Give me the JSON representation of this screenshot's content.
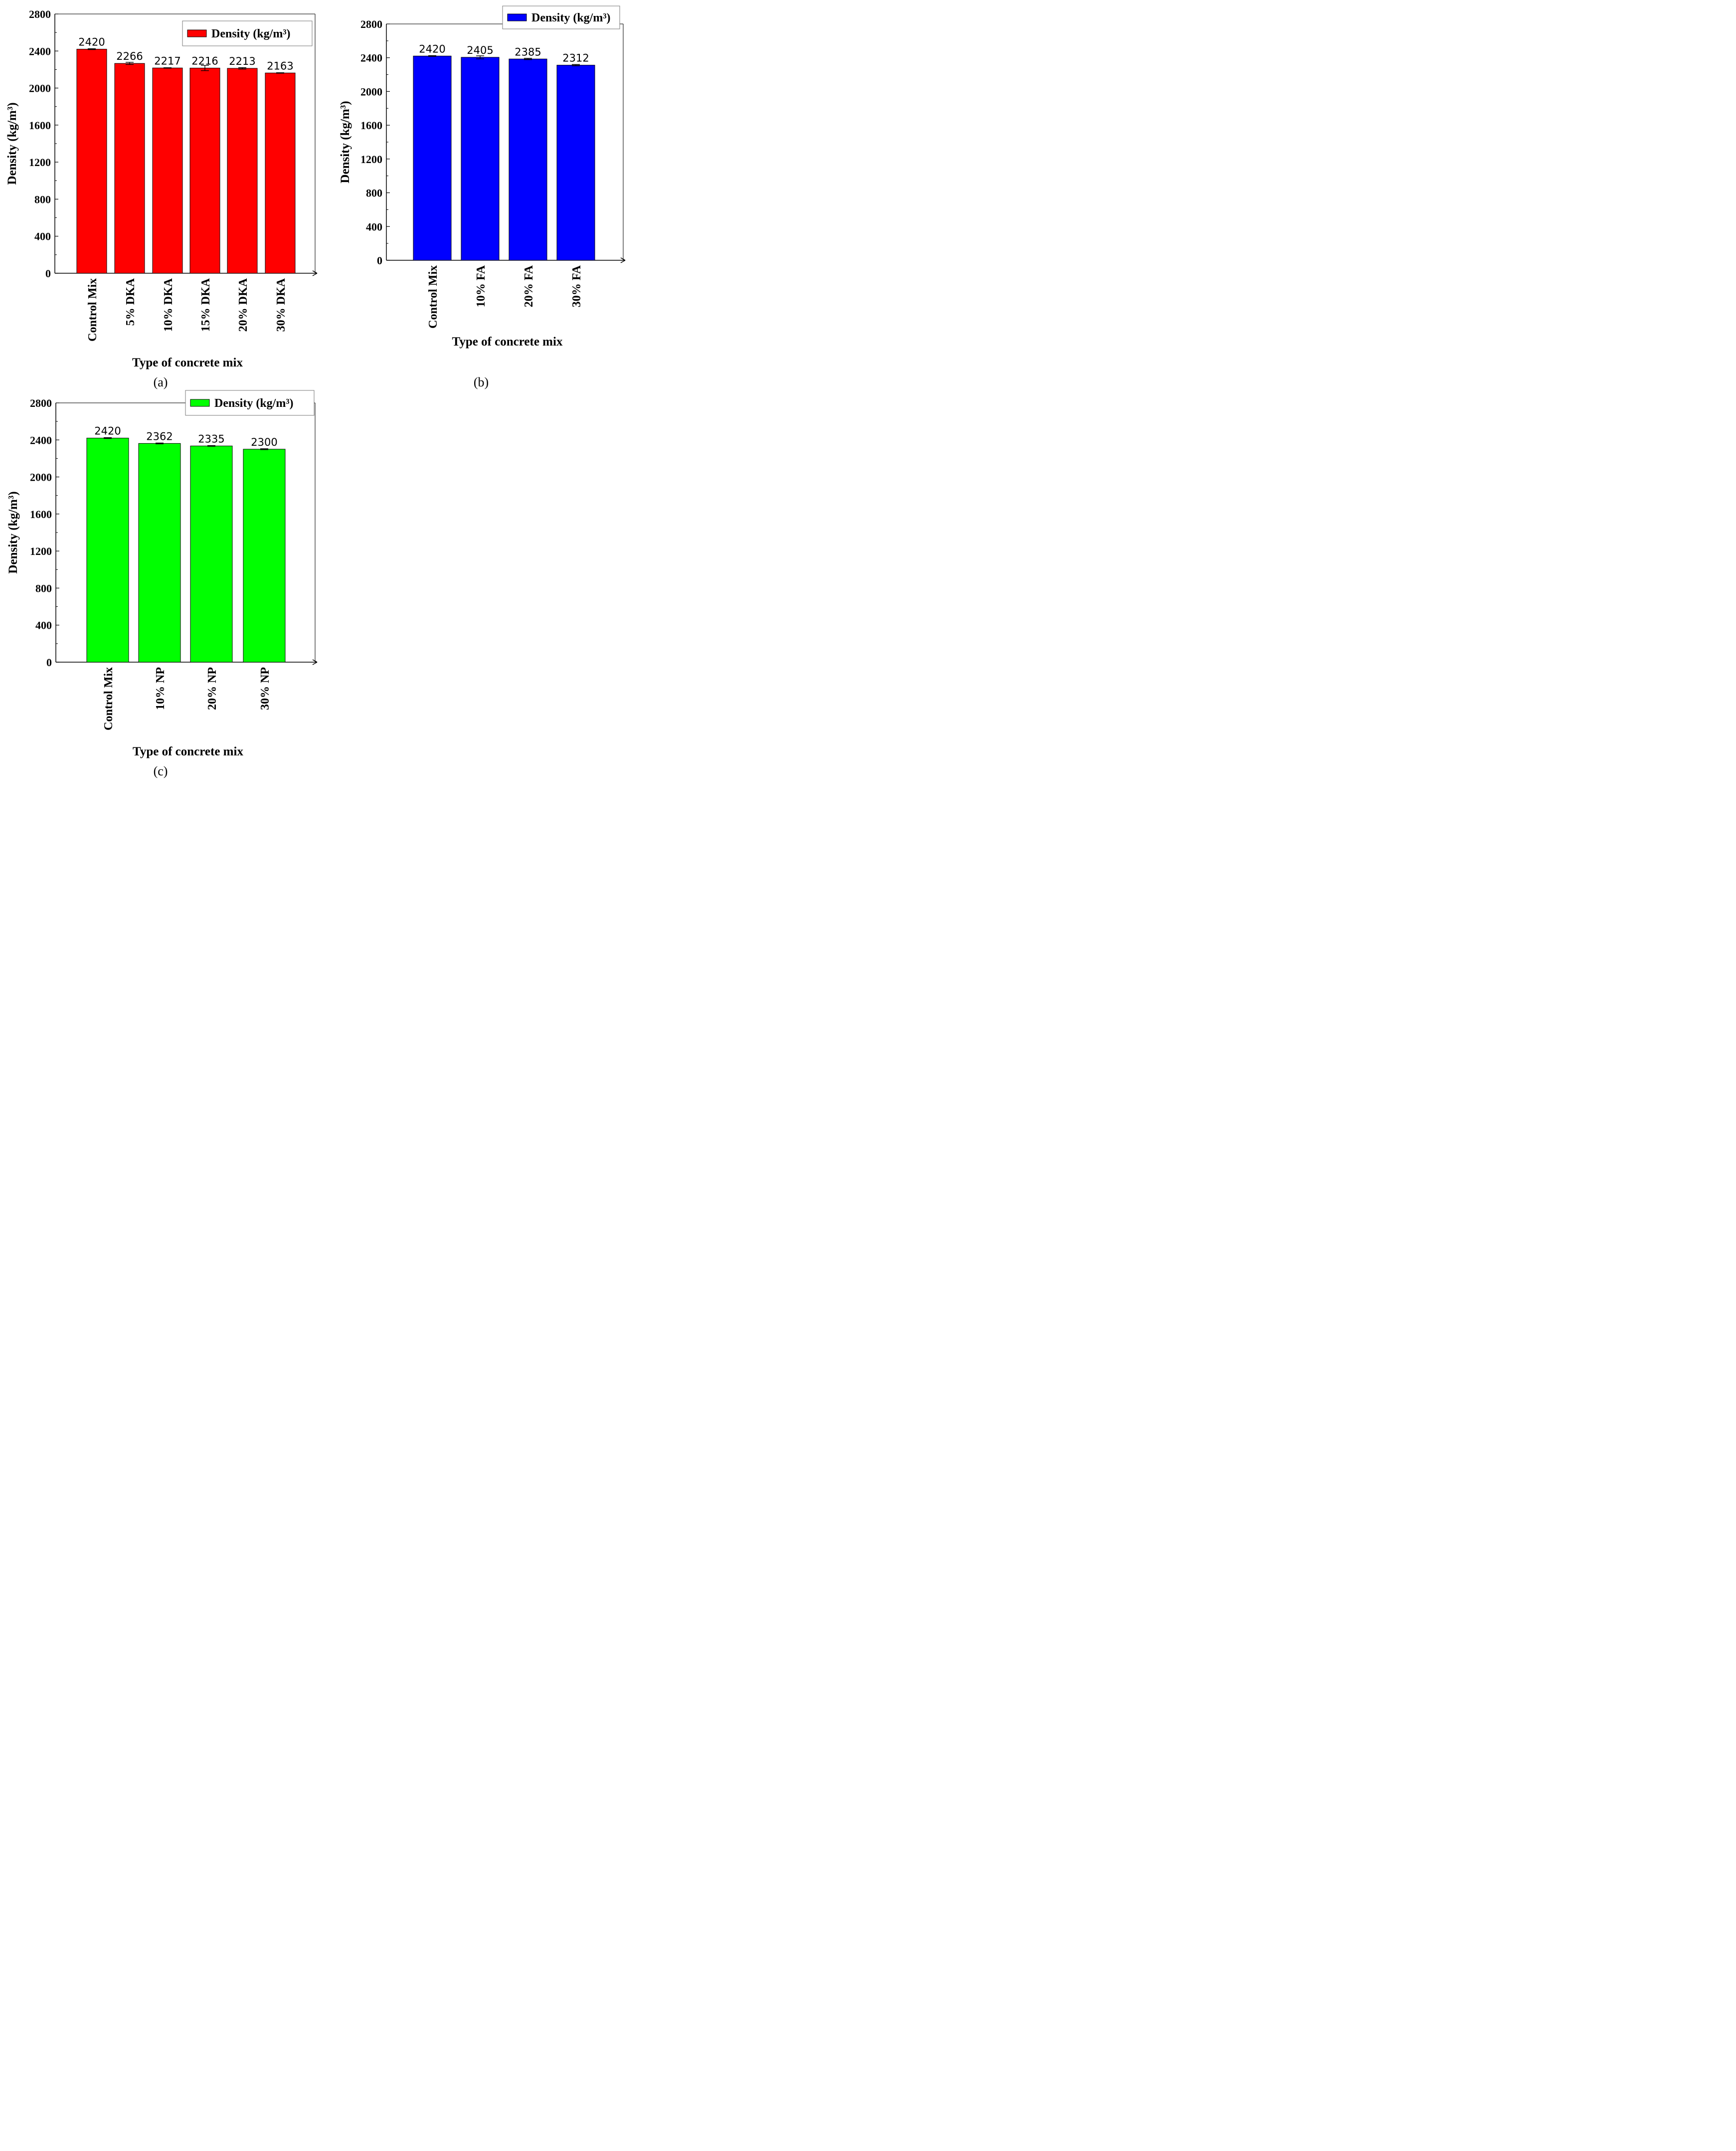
{
  "chart_data": [
    {
      "panel": "(a)",
      "type": "bar",
      "xlabel": "Type of concrete mix",
      "ylabel": "Density (kg/m³)",
      "ylim": [
        0,
        2800
      ],
      "yticks": [
        "0",
        "400",
        "800",
        "1200",
        "1600",
        "2000",
        "2400",
        "2800"
      ],
      "categories": [
        "Control Mix",
        "5% DKA",
        "10% DKA",
        "15% DKA",
        "20% DKA",
        "30% DKA"
      ],
      "series": [
        {
          "name": "Density (kg/m³)",
          "color": "#ff0000",
          "values": [
            2420,
            2266,
            2217,
            2216,
            2213,
            2163
          ],
          "labels": [
            "2420",
            "2266",
            "2217",
            "2216",
            "2213",
            "2163"
          ],
          "errors": [
            5,
            12,
            3,
            28,
            8,
            3
          ]
        }
      ],
      "legend": "top-right",
      "grid": false
    },
    {
      "panel": "(b)",
      "type": "bar",
      "xlabel": "Type of concrete mix",
      "ylabel": "Density (kg/m³)",
      "ylim": [
        0,
        2800
      ],
      "yticks": [
        "0",
        "400",
        "800",
        "1200",
        "1600",
        "2000",
        "2400",
        "2800"
      ],
      "categories": [
        "Control Mix",
        "10% FA",
        "20% FA",
        "30% FA"
      ],
      "series": [
        {
          "name": "Density (kg/m³)",
          "color": "#0000ff",
          "values": [
            2420,
            2405,
            2385,
            2312
          ],
          "labels": [
            "2420",
            "2405",
            "2385",
            "2312"
          ],
          "errors": [
            5,
            18,
            8,
            8
          ]
        }
      ],
      "legend": "top-right",
      "grid": false
    },
    {
      "panel": "(c)",
      "type": "bar",
      "xlabel": "Type of concrete mix",
      "ylabel": "Density (kg/m³)",
      "ylim": [
        0,
        2800
      ],
      "yticks": [
        "0",
        "400",
        "800",
        "1200",
        "1600",
        "2000",
        "2400",
        "2800"
      ],
      "categories": [
        "Control Mix",
        "10% NP",
        "20% NP",
        "30% NP"
      ],
      "series": [
        {
          "name": "Density (kg/m³)",
          "color": "#00ff00",
          "values": [
            2420,
            2362,
            2335,
            2300
          ],
          "labels": [
            "2420",
            "2362",
            "2335",
            "2300"
          ],
          "errors": [
            5,
            5,
            4,
            5
          ]
        }
      ],
      "legend": "top-right",
      "grid": false
    }
  ]
}
